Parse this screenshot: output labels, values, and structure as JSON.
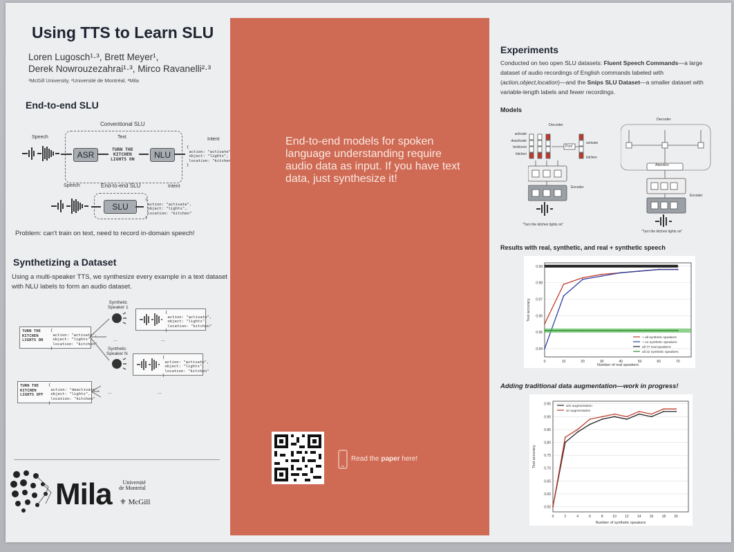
{
  "title": "Using TTS to Learn SLU",
  "authors": [
    "Loren Lugosch¹·³, Brett Meyer¹,",
    "Derek Nowrouzezahrai¹·³, Mirco Ravanelli²·³"
  ],
  "affiliations": "¹McGill University, ²Université de Montréal, ³Mila",
  "e2e": {
    "heading": "End-to-end SLU",
    "conv_label": "Conventional SLU",
    "speech": "Speech",
    "text": "Text",
    "intent": "Intent",
    "asr": "ASR",
    "nlu": "NLU",
    "transcript": "TURN THE\nKITCHEN\nLIGHTS ON",
    "intent_json": "{\n action: \"activate\",\n object: \"lights\",\n location: \"kitchen\"\n}",
    "e2e_label": "End-to-end SLU",
    "slu": "SLU",
    "problem": "Problem: can't train on text, need to record in-domain speech!"
  },
  "synth": {
    "heading": "Synthetizing a Dataset",
    "text": "Using a multi-speaker TTS, we synthesize every example in a text dataset with NLU labels to form an audio dataset.",
    "speaker1": "Synthetic\nSpeaker 1",
    "speakerN": "Synthetic\nSpeaker N",
    "ex1_text": "TURN THE\nKITCHEN\nLIGHTS ON",
    "ex1_json": "{\n action: \"activate\",\n object: \"lights\",\n location: \"kitchen\"\n}",
    "ex2_text": "TURN THE\nKITCHEN\nLIGHTS OFF",
    "ex2_json": "{\n action: \"deactivate\",\n object: \"lights\",\n location: \"kitchen\"\n}",
    "dots": "..."
  },
  "logos": {
    "mila": "Mila",
    "udem": "Université\nde Montréal",
    "mcgill": "McGill"
  },
  "center": {
    "claim": "End-to-end models for spoken language understanding require audio data as input.  If you have text data, just synthesize it!",
    "read_prefix": "Read the ",
    "read_bold": "paper",
    "read_suffix": " here!"
  },
  "experiments": {
    "heading": "Experiments",
    "text_a": "Conducted on two open SLU datasets: ",
    "fsc": "Fluent Speech Commands",
    "text_b": "—a large dataset of audio recordings of English commands labeled with (",
    "tuple": "action,object,location",
    "text_c": ")—and the ",
    "snips": "Snips SLU Dataset",
    "text_d": "—a smaller dataset with variable-length labels and fewer recordings.",
    "models": "Models",
    "decoder": "Decoder",
    "encoder": "Encoder",
    "pool": "Pool",
    "attention": "Attention",
    "slot_labels": [
      "activate",
      "deactivate",
      "bedroom",
      "kitchen"
    ],
    "out_labels": [
      "activate",
      "kitchen"
    ],
    "caption": "\"Turn the kitchen lights on\"",
    "results_heading": "Results with real, synthetic, and real + synthetic speech",
    "aug_heading": "Adding traditional data augmentation—work in progress!"
  },
  "chart_data": [
    {
      "type": "line",
      "title": "",
      "xlabel": "Number of real speakers",
      "ylabel": "Test accuracy",
      "x": [
        0,
        10,
        20,
        30,
        40,
        50,
        60,
        70
      ],
      "xlim": [
        0,
        77
      ],
      "ylim": [
        0.935,
        0.992
      ],
      "yticks": [
        0.94,
        0.95,
        0.96,
        0.97,
        0.98,
        0.99
      ],
      "series": [
        {
          "name": "+ all synthetic speakers",
          "color": "#c0392b",
          "values": [
            0.955,
            0.979,
            0.983,
            0.985,
            0.986,
            0.987,
            0.988,
            0.988
          ]
        },
        {
          "name": "+ no synthetic speakers",
          "color": "#2c3e9e",
          "values": [
            0.94,
            0.972,
            0.982,
            0.984,
            0.986,
            0.987,
            0.988,
            0.988
          ]
        },
        {
          "name": "all 77 real speakers",
          "color": "#222222",
          "values": [
            0.99,
            0.99,
            0.99,
            0.99,
            0.99,
            0.99,
            0.99,
            0.99
          ]
        },
        {
          "name": "all 22 synthetic speakers",
          "color": "#2a8a2a",
          "values": [
            0.951,
            0.951,
            0.951,
            0.951,
            0.951,
            0.951,
            0.951,
            0.951
          ]
        }
      ],
      "grid": true,
      "legend": "bottom-right"
    },
    {
      "type": "line",
      "title": "",
      "xlabel": "Number of synthetic speakers",
      "ylabel": "Test accuracy",
      "x": [
        0,
        2,
        4,
        6,
        8,
        10,
        12,
        14,
        16,
        18,
        20
      ],
      "xlim": [
        0,
        22
      ],
      "ylim": [
        0.53,
        0.96
      ],
      "yticks": [
        0.55,
        0.6,
        0.65,
        0.7,
        0.75,
        0.8,
        0.85,
        0.9,
        0.95
      ],
      "series": [
        {
          "name": "w/o augmentation",
          "color": "#222222",
          "values": [
            0.55,
            0.8,
            0.84,
            0.87,
            0.89,
            0.9,
            0.89,
            0.91,
            0.9,
            0.92,
            0.92
          ]
        },
        {
          "name": "w/ augmentation",
          "color": "#c0392b",
          "values": [
            0.55,
            0.82,
            0.85,
            0.89,
            0.9,
            0.91,
            0.9,
            0.92,
            0.91,
            0.93,
            0.93
          ]
        }
      ],
      "grid": true,
      "legend": "top-left"
    }
  ]
}
